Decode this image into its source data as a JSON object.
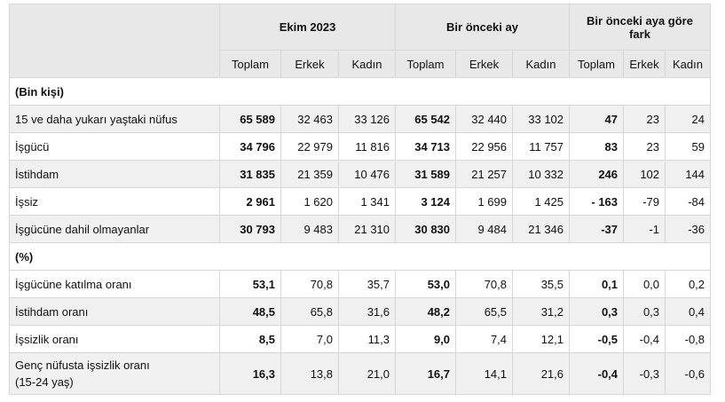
{
  "header": {
    "groups": [
      "Ekim 2023",
      "Bir önceki ay",
      "Bir önceki aya göre fark"
    ],
    "sub": [
      "Toplam",
      "Erkek",
      "Kadın",
      "Toplam",
      "Erkek",
      "Kadın",
      "Toplam",
      "Erkek",
      "Kadın"
    ]
  },
  "rows": [
    {
      "type": "section",
      "label": "(Bin kişi)"
    },
    {
      "label": "15 ve daha yukarı yaştaki nüfus",
      "cells": [
        "65 589",
        "32 463",
        "33 126",
        "65 542",
        "32 440",
        "33 102",
        "47",
        "23",
        "24"
      ]
    },
    {
      "label": "İşgücü",
      "cells": [
        "34 796",
        "22 979",
        "11 816",
        "34 713",
        "22 956",
        "11 757",
        "83",
        "23",
        "59"
      ]
    },
    {
      "label": "İstihdam",
      "cells": [
        "31 835",
        "21 359",
        "10 476",
        "31 589",
        "21 257",
        "10 332",
        "246",
        "102",
        "144"
      ]
    },
    {
      "label": "İşsiz",
      "cells": [
        "2 961",
        "1 620",
        "1 341",
        "3 124",
        "1 699",
        "1 425",
        "- 163",
        "-79",
        "-84"
      ]
    },
    {
      "label": "İşgücüne dahil olmayanlar",
      "cells": [
        "30 793",
        "9 483",
        "21 310",
        "30 830",
        "9 484",
        "21 346",
        "-37",
        "-1",
        "-36"
      ]
    },
    {
      "type": "section",
      "label": "(%)"
    },
    {
      "label": "İşgücüne katılma oranı",
      "cells": [
        "53,1",
        "70,8",
        "35,7",
        "53,0",
        "70,8",
        "35,5",
        "0,1",
        "0,0",
        "0,2"
      ]
    },
    {
      "label": "İstihdam oranı",
      "cells": [
        "48,5",
        "65,8",
        "31,6",
        "48,2",
        "65,5",
        "31,2",
        "0,3",
        "0,3",
        "0,4"
      ]
    },
    {
      "label": "İşsizlik oranı",
      "cells": [
        "8,5",
        "7,0",
        "11,3",
        "9,0",
        "7,4",
        "12,1",
        "-0,5",
        "-0,4",
        "-0,8"
      ]
    },
    {
      "label": "Genç nüfusta işsizlik oranı",
      "label2": "(15-24 yaş)",
      "cells": [
        "16,3",
        "13,8",
        "21,0",
        "16,7",
        "14,1",
        "21,6",
        "-0,4",
        "-0,3",
        "-0,6"
      ]
    }
  ]
}
